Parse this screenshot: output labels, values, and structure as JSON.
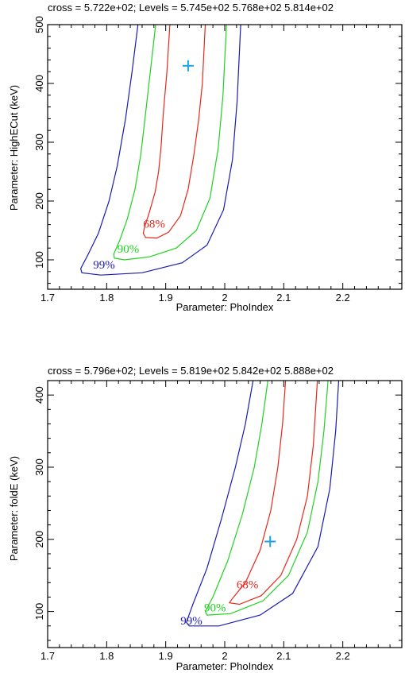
{
  "colors": {
    "c68": "#e8271c",
    "c90": "#1fd21f",
    "c99": "#1a1ab4",
    "cross": "#1aa3e8",
    "axis": "#000000"
  },
  "chart_data": [
    {
      "type": "contour",
      "title": "cross = 5.722e+02; Levels =  5.745e+02 5.768e+02 5.814e+02",
      "xlabel": "Parameter: PhoIndex",
      "ylabel": "Parameter: HighECut (keV)",
      "xlim": [
        1.7,
        2.3
      ],
      "ylim": [
        50,
        500
      ],
      "xticks": [
        1.7,
        1.8,
        1.9,
        2.0,
        2.1,
        2.2
      ],
      "xtick_labels": [
        "1.7",
        "1.8",
        "1.9",
        "2",
        "2.1",
        "2.2"
      ],
      "yticks": [
        100,
        200,
        300,
        400,
        500
      ],
      "ytick_labels": [
        "100",
        "200",
        "300",
        "400",
        "500"
      ],
      "best_fit": {
        "x": 1.938,
        "y": 430
      },
      "contours": [
        {
          "level_label": "68%",
          "color_key": "c68",
          "label_pos": {
            "x": 1.862,
            "y": 155
          },
          "points": [
            [
              1.907,
              500
            ],
            [
              1.902,
              420
            ],
            [
              1.896,
              350
            ],
            [
              1.892,
              290
            ],
            [
              1.888,
              250
            ],
            [
              1.882,
              215
            ],
            [
              1.872,
              180
            ],
            [
              1.864,
              155
            ],
            [
              1.862,
              145
            ],
            [
              1.866,
              138
            ],
            [
              1.885,
              137
            ],
            [
              1.905,
              147
            ],
            [
              1.925,
              175
            ],
            [
              1.938,
              220
            ],
            [
              1.948,
              280
            ],
            [
              1.956,
              340
            ],
            [
              1.962,
              400
            ],
            [
              1.967,
              500
            ]
          ]
        },
        {
          "level_label": "90%",
          "color_key": "c90",
          "label_pos": {
            "x": 1.818,
            "y": 112
          },
          "points": [
            [
              1.883,
              500
            ],
            [
              1.874,
              420
            ],
            [
              1.866,
              350
            ],
            [
              1.858,
              280
            ],
            [
              1.848,
              220
            ],
            [
              1.835,
              170
            ],
            [
              1.822,
              133
            ],
            [
              1.812,
              110
            ],
            [
              1.813,
              103
            ],
            [
              1.83,
              100
            ],
            [
              1.872,
              105
            ],
            [
              1.918,
              120
            ],
            [
              1.952,
              150
            ],
            [
              1.975,
              205
            ],
            [
              1.989,
              290
            ],
            [
              1.997,
              380
            ],
            [
              2.003,
              500
            ]
          ]
        },
        {
          "level_label": "99%",
          "color_key": "c99",
          "label_pos": {
            "x": 1.777,
            "y": 85
          },
          "points": [
            [
              1.853,
              500
            ],
            [
              1.843,
              420
            ],
            [
              1.832,
              340
            ],
            [
              1.818,
              260
            ],
            [
              1.804,
              200
            ],
            [
              1.786,
              145
            ],
            [
              1.768,
              108
            ],
            [
              1.756,
              85
            ],
            [
              1.758,
              78
            ],
            [
              1.79,
              74
            ],
            [
              1.86,
              78
            ],
            [
              1.928,
              95
            ],
            [
              1.97,
              125
            ],
            [
              1.998,
              185
            ],
            [
              2.013,
              270
            ],
            [
              2.021,
              370
            ],
            [
              2.027,
              500
            ]
          ]
        }
      ]
    },
    {
      "type": "contour",
      "title": "cross = 5.796e+02; Levels =  5.819e+02 5.842e+02 5.888e+02",
      "xlabel": "Parameter: PhoIndex",
      "ylabel": "Parameter: foldE (keV)",
      "xlim": [
        1.7,
        2.3
      ],
      "ylim": [
        50,
        420
      ],
      "xticks": [
        1.7,
        1.8,
        1.9,
        2.0,
        2.1,
        2.2
      ],
      "xtick_labels": [
        "1.7",
        "1.8",
        "1.9",
        "2",
        "2.1",
        "2.2"
      ],
      "yticks": [
        100,
        200,
        300,
        400
      ],
      "ytick_labels": [
        "100",
        "200",
        "300",
        "400"
      ],
      "best_fit": {
        "x": 2.077,
        "y": 197
      },
      "contours": [
        {
          "level_label": "68%",
          "color_key": "c68",
          "label_pos": {
            "x": 2.02,
            "y": 132
          },
          "points": [
            [
              2.103,
              420
            ],
            [
              2.098,
              360
            ],
            [
              2.09,
              300
            ],
            [
              2.078,
              240
            ],
            [
              2.06,
              185
            ],
            [
              2.035,
              140
            ],
            [
              2.013,
              118
            ],
            [
              2.008,
              112
            ],
            [
              2.025,
              110
            ],
            [
              2.062,
              122
            ],
            [
              2.095,
              150
            ],
            [
              2.122,
              200
            ],
            [
              2.14,
              260
            ],
            [
              2.15,
              330
            ],
            [
              2.157,
              420
            ]
          ]
        },
        {
          "level_label": "90%",
          "color_key": "c90",
          "label_pos": {
            "x": 1.965,
            "y": 100
          },
          "points": [
            [
              2.073,
              420
            ],
            [
              2.063,
              360
            ],
            [
              2.05,
              300
            ],
            [
              2.03,
              235
            ],
            [
              2.005,
              170
            ],
            [
              1.98,
              120
            ],
            [
              1.967,
              100
            ],
            [
              1.97,
              95
            ],
            [
              2.01,
              97
            ],
            [
              2.065,
              115
            ],
            [
              2.108,
              150
            ],
            [
              2.14,
              210
            ],
            [
              2.158,
              280
            ],
            [
              2.168,
              350
            ],
            [
              2.175,
              420
            ]
          ]
        },
        {
          "level_label": "99%",
          "color_key": "c99",
          "label_pos": {
            "x": 1.925,
            "y": 82
          },
          "points": [
            [
              2.048,
              420
            ],
            [
              2.035,
              360
            ],
            [
              2.018,
              300
            ],
            [
              1.995,
              230
            ],
            [
              1.97,
              160
            ],
            [
              1.946,
              110
            ],
            [
              1.935,
              85
            ],
            [
              1.94,
              80
            ],
            [
              1.99,
              80
            ],
            [
              2.06,
              95
            ],
            [
              2.115,
              125
            ],
            [
              2.158,
              190
            ],
            [
              2.178,
              270
            ],
            [
              2.188,
              350
            ],
            [
              2.193,
              420
            ]
          ]
        }
      ]
    }
  ]
}
